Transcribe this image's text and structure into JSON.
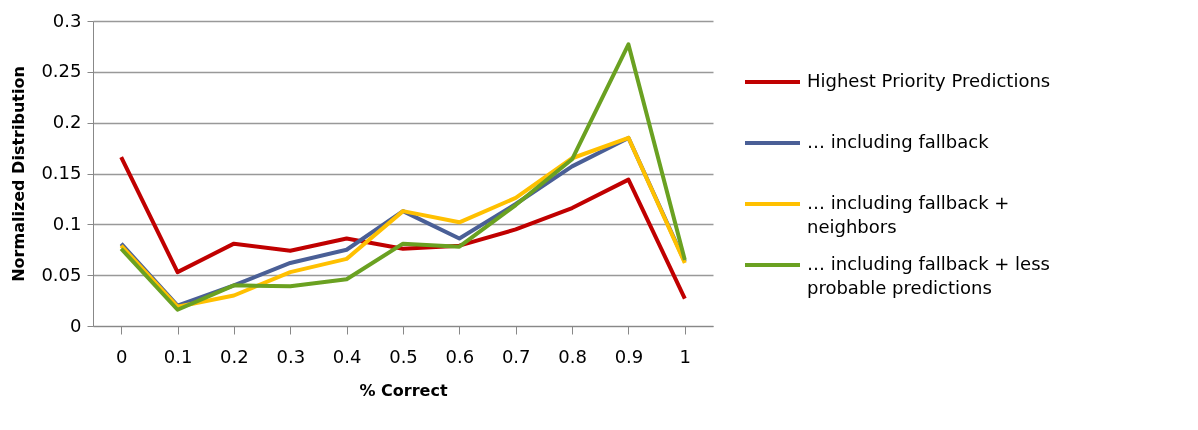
{
  "chart_data": {
    "type": "line",
    "xlabel": "% Correct",
    "ylabel": "Normalized Distribution",
    "categories": [
      "0",
      "0.1",
      "0.2",
      "0.3",
      "0.4",
      "0.5",
      "0.6",
      "0.7",
      "0.8",
      "0.9",
      "1"
    ],
    "series": [
      {
        "name": "Highest Priority Predictions",
        "color": "#c00000",
        "values": [
          0.166,
          0.053,
          0.081,
          0.074,
          0.086,
          0.076,
          0.079,
          0.095,
          0.116,
          0.144,
          0.027
        ]
      },
      {
        "name": "… including fallback",
        "color": "#4a5f96",
        "values": [
          0.081,
          0.02,
          0.04,
          0.062,
          0.075,
          0.113,
          0.086,
          0.12,
          0.157,
          0.185,
          0.063
        ]
      },
      {
        "name": "… including fallback + neighbors",
        "color": "#ffc000",
        "values": [
          0.079,
          0.019,
          0.03,
          0.053,
          0.066,
          0.113,
          0.102,
          0.126,
          0.165,
          0.185,
          0.062
        ]
      },
      {
        "name": "… including fallback + less probable predictions",
        "color": "#6aa121",
        "values": [
          0.076,
          0.016,
          0.04,
          0.039,
          0.046,
          0.081,
          0.078,
          0.119,
          0.164,
          0.277,
          0.065
        ]
      }
    ],
    "ylim": [
      0,
      0.3
    ],
    "yticks": [
      0,
      0.05,
      0.1,
      0.15,
      0.2,
      0.25,
      0.3
    ],
    "grid": "y",
    "legend": "right",
    "marker": "none",
    "line_style": "solid"
  }
}
